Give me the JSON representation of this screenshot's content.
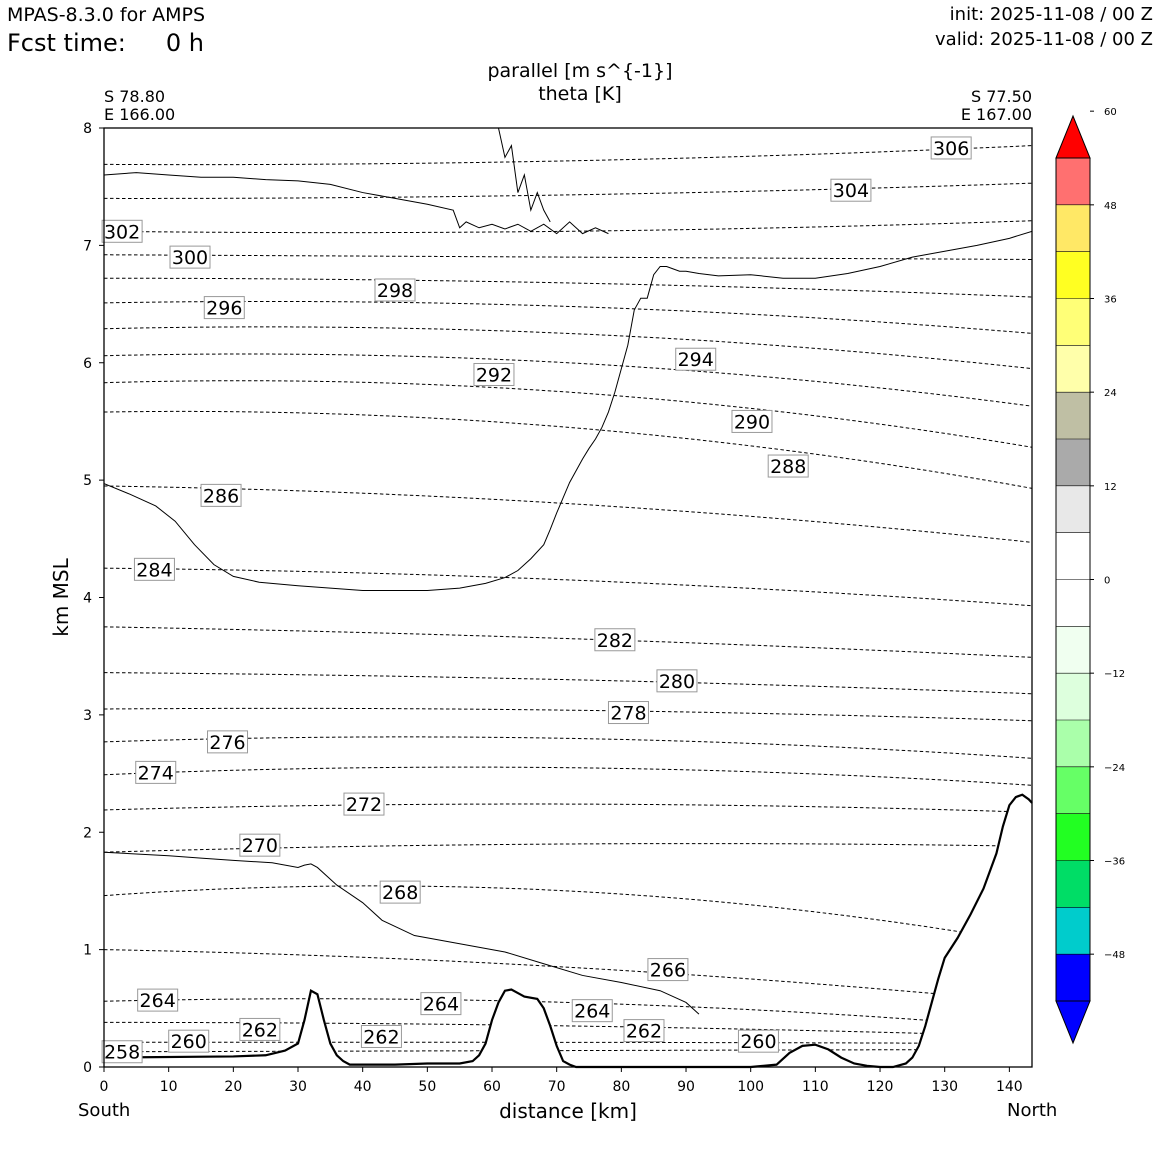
{
  "header": {
    "model": "MPAS-8.3.0 for AMPS",
    "fcst_label": "Fcst time:",
    "fcst_value": "0 h",
    "init": "init: 2025-11-08 / 00 Z",
    "valid": "valid: 2025-11-08 / 00 Z"
  },
  "chart_data": {
    "type": "cross-section contour",
    "title_lines": [
      "parallel [m s^{-1}]",
      "theta [K]"
    ],
    "xlabel": "distance [km]",
    "ylabel": "km MSL",
    "xlim": [
      0,
      143.5
    ],
    "ylim": [
      0,
      8
    ],
    "xticks": [
      0,
      10,
      20,
      30,
      40,
      50,
      60,
      70,
      80,
      90,
      100,
      110,
      120,
      130,
      140
    ],
    "yticks": [
      0,
      1,
      2,
      3,
      4,
      5,
      6,
      7,
      8
    ],
    "left_end": {
      "lat": "S 78.80",
      "lon": "E 166.00",
      "label": "South"
    },
    "right_end": {
      "lat": "S 77.50",
      "lon": "E 167.00",
      "label": "North"
    },
    "colorbar": {
      "ticks": [
        60,
        48,
        36,
        24,
        12,
        0,
        -12,
        -24,
        -36,
        -48
      ],
      "tick_labels": [
        "60",
        "48",
        "36",
        "24",
        "12",
        "0",
        "−12",
        "−24",
        "−36",
        "−48"
      ],
      "bounds": [
        -54,
        -48,
        -42,
        -36,
        -30,
        -24,
        -18,
        -12,
        -6,
        0,
        6,
        12,
        18,
        24,
        30,
        36,
        42,
        48,
        54
      ],
      "colors": [
        "#0000ff",
        "#00cccc",
        "#00dd66",
        "#22ff22",
        "#66ff66",
        "#aaffaa",
        "#ddffdd",
        "#f0fff0",
        "#ffffff",
        "#ffffff",
        "#e8e8e8",
        "#aaaaaa",
        "#bfbfa4",
        "#ffffaa",
        "#ffff77",
        "#ffff22",
        "#ffe866",
        "#ff7070",
        "#ff0000"
      ],
      "under_color": "#0000ff",
      "over_color": "#ff0000"
    },
    "theta_levels": [
      {
        "value": 258,
        "y": [
          0.13,
          0.14,
          0.15
        ]
      },
      {
        "value": 260,
        "y": [
          0.21,
          0.21,
          0.2
        ]
      },
      {
        "value": 262,
        "y": [
          0.38,
          0.35,
          0.26
        ]
      },
      {
        "value": 264,
        "y": [
          0.56,
          0.55,
          0.33
        ]
      },
      {
        "value": 266,
        "y": [
          1.0,
          0.85,
          0.55
        ]
      },
      {
        "value": 268,
        "y": [
          1.46,
          1.5,
          1.05
        ]
      },
      {
        "value": 270,
        "y": [
          1.83,
          1.9,
          1.88
        ]
      },
      {
        "value": 272,
        "y": [
          2.19,
          2.24,
          2.17
        ]
      },
      {
        "value": 274,
        "y": [
          2.49,
          2.55,
          2.4
        ]
      },
      {
        "value": 276,
        "y": [
          2.77,
          2.8,
          2.63
        ]
      },
      {
        "value": 278,
        "y": [
          3.05,
          3.04,
          2.95
        ]
      },
      {
        "value": 280,
        "y": [
          3.36,
          3.3,
          3.18
        ]
      },
      {
        "value": 282,
        "y": [
          3.75,
          3.65,
          3.49
        ]
      },
      {
        "value": 284,
        "y": [
          4.25,
          4.15,
          3.93
        ]
      },
      {
        "value": 286,
        "y": [
          4.95,
          4.8,
          4.47
        ]
      },
      {
        "value": 288,
        "y": [
          5.58,
          5.45,
          4.93
        ]
      },
      {
        "value": 290,
        "y": [
          5.83,
          5.75,
          5.28
        ]
      },
      {
        "value": 292,
        "y": [
          6.06,
          6.0,
          5.63
        ]
      },
      {
        "value": 294,
        "y": [
          6.29,
          6.25,
          5.95
        ]
      },
      {
        "value": 296,
        "y": [
          6.51,
          6.48,
          6.25
        ]
      },
      {
        "value": 298,
        "y": [
          6.72,
          6.68,
          6.56
        ]
      },
      {
        "value": 300,
        "y": [
          6.92,
          6.9,
          6.88
        ]
      },
      {
        "value": 302,
        "y": [
          7.12,
          7.12,
          7.21
        ]
      },
      {
        "value": 304,
        "y": [
          7.4,
          7.43,
          7.53
        ]
      },
      {
        "value": 306,
        "y": [
          7.69,
          7.72,
          7.85
        ]
      }
    ],
    "terrain": {
      "x": [
        0,
        20,
        25,
        28,
        30,
        31,
        32,
        33,
        34,
        35,
        36,
        37,
        38,
        40,
        45,
        50,
        55,
        57,
        58,
        59,
        60,
        61,
        62,
        63,
        64,
        65,
        67,
        68,
        69,
        70,
        71,
        72,
        73,
        74,
        80,
        90,
        100,
        104,
        106,
        108,
        110,
        112,
        114,
        116,
        118,
        120,
        122,
        124,
        125,
        126,
        127,
        128,
        129,
        130,
        132,
        134,
        136,
        138,
        139,
        140,
        141,
        142,
        143,
        143.5
      ],
      "y": [
        0.08,
        0.09,
        0.1,
        0.14,
        0.2,
        0.4,
        0.65,
        0.62,
        0.4,
        0.2,
        0.1,
        0.05,
        0.02,
        0.02,
        0.02,
        0.03,
        0.03,
        0.05,
        0.1,
        0.2,
        0.4,
        0.55,
        0.65,
        0.66,
        0.63,
        0.6,
        0.58,
        0.5,
        0.35,
        0.18,
        0.05,
        0.02,
        0.0,
        0.0,
        0.0,
        0.0,
        0.0,
        0.02,
        0.12,
        0.18,
        0.19,
        0.15,
        0.08,
        0.03,
        0.01,
        0.0,
        0.0,
        0.03,
        0.08,
        0.18,
        0.35,
        0.55,
        0.75,
        0.93,
        1.1,
        1.3,
        1.52,
        1.82,
        2.05,
        2.23,
        2.3,
        2.32,
        2.28,
        2.25
      ]
    },
    "wind_contours": [
      {
        "x": [
          0,
          10,
          15,
          20,
          26,
          30,
          31,
          32,
          33,
          36,
          40,
          43,
          48,
          55,
          62,
          68,
          74,
          80,
          86,
          90,
          92
        ],
        "y": [
          1.83,
          1.8,
          1.78,
          1.76,
          1.74,
          1.7,
          1.72,
          1.73,
          1.7,
          1.55,
          1.4,
          1.25,
          1.12,
          1.05,
          0.98,
          0.88,
          0.78,
          0.72,
          0.65,
          0.55,
          0.45
        ]
      },
      {
        "x": [
          0,
          4,
          8,
          11,
          14,
          17,
          20,
          24,
          30,
          35,
          40,
          45,
          50,
          55,
          59,
          62,
          64,
          66,
          68,
          69,
          70,
          71,
          72,
          73,
          74,
          75,
          76,
          77,
          78,
          79,
          80,
          81,
          82,
          83,
          84,
          85,
          86,
          87,
          88,
          89,
          90,
          92,
          95,
          100,
          105,
          110,
          115,
          120,
          125,
          130,
          135,
          140,
          143.5
        ],
        "y": [
          4.97,
          4.88,
          4.78,
          4.65,
          4.45,
          4.28,
          4.18,
          4.13,
          4.1,
          4.08,
          4.06,
          4.06,
          4.06,
          4.08,
          4.12,
          4.17,
          4.23,
          4.33,
          4.45,
          4.58,
          4.72,
          4.85,
          4.98,
          5.08,
          5.18,
          5.27,
          5.35,
          5.45,
          5.58,
          5.75,
          5.95,
          6.15,
          6.45,
          6.55,
          6.55,
          6.75,
          6.82,
          6.82,
          6.8,
          6.78,
          6.78,
          6.76,
          6.74,
          6.75,
          6.72,
          6.72,
          6.76,
          6.82,
          6.9,
          6.95,
          7.0,
          7.06,
          7.12
        ]
      },
      {
        "x": [
          0,
          5,
          10,
          15,
          20,
          25,
          30,
          35,
          40,
          45,
          50,
          54,
          55,
          56,
          58,
          60,
          62,
          64,
          66,
          68,
          70,
          72,
          74,
          76,
          78
        ],
        "y": [
          7.6,
          7.62,
          7.6,
          7.58,
          7.58,
          7.56,
          7.55,
          7.52,
          7.45,
          7.4,
          7.35,
          7.3,
          7.15,
          7.2,
          7.15,
          7.18,
          7.14,
          7.18,
          7.12,
          7.18,
          7.1,
          7.2,
          7.1,
          7.15,
          7.1
        ]
      },
      {
        "x": [
          61,
          62,
          63,
          64,
          65,
          66,
          67,
          68,
          69
        ],
        "y": [
          8.0,
          7.75,
          7.85,
          7.45,
          7.6,
          7.3,
          7.45,
          7.3,
          7.2
        ]
      }
    ],
    "contour_labels": [
      {
        "text": "306",
        "x": 131,
        "y": 7.83
      },
      {
        "text": "304",
        "x": 115.5,
        "y": 7.47
      },
      {
        "text": "302",
        "x": 2.8,
        "y": 7.12
      },
      {
        "text": "300",
        "x": 13.3,
        "y": 6.9
      },
      {
        "text": "298",
        "x": 45,
        "y": 6.62
      },
      {
        "text": "296",
        "x": 18.6,
        "y": 6.47
      },
      {
        "text": "294",
        "x": 91.5,
        "y": 6.03
      },
      {
        "text": "292",
        "x": 60.3,
        "y": 5.9
      },
      {
        "text": "290",
        "x": 100.2,
        "y": 5.5
      },
      {
        "text": "288",
        "x": 105.8,
        "y": 5.12
      },
      {
        "text": "286",
        "x": 18.1,
        "y": 4.87
      },
      {
        "text": "284",
        "x": 7.8,
        "y": 4.24
      },
      {
        "text": "282",
        "x": 79,
        "y": 3.64
      },
      {
        "text": "280",
        "x": 88.6,
        "y": 3.29
      },
      {
        "text": "278",
        "x": 81.1,
        "y": 3.02
      },
      {
        "text": "276",
        "x": 19.1,
        "y": 2.77
      },
      {
        "text": "274",
        "x": 8,
        "y": 2.51
      },
      {
        "text": "272",
        "x": 40.2,
        "y": 2.24
      },
      {
        "text": "270",
        "x": 24.1,
        "y": 1.89
      },
      {
        "text": "268",
        "x": 45.8,
        "y": 1.49
      },
      {
        "text": "266",
        "x": 87.2,
        "y": 0.83
      },
      {
        "text": "264",
        "x": 8.3,
        "y": 0.57
      },
      {
        "text": "264",
        "x": 52.1,
        "y": 0.54
      },
      {
        "text": "264",
        "x": 75.5,
        "y": 0.48
      },
      {
        "text": "262",
        "x": 24.1,
        "y": 0.32
      },
      {
        "text": "262",
        "x": 42.9,
        "y": 0.26
      },
      {
        "text": "262",
        "x": 83.5,
        "y": 0.31
      },
      {
        "text": "260",
        "x": 13.1,
        "y": 0.22
      },
      {
        "text": "260",
        "x": 101.2,
        "y": 0.22
      },
      {
        "text": "258",
        "x": 2.8,
        "y": 0.13
      }
    ]
  }
}
